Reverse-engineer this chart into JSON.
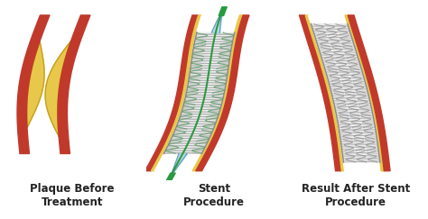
{
  "bg_color": "#ffffff",
  "panel_labels": [
    "Plaque Before\nTreatment",
    "Stent\nProcedure",
    "Result After Stent\nProcedure"
  ],
  "artery_color": "#c0392b",
  "artery_wall_color": "#c0392b",
  "artery_inner_color": "#f5deb3",
  "plaque_fill": "#e8c84a",
  "plaque_border": "#c8a020",
  "stent_color": "#888888",
  "stent_bg": "#e8e8e8",
  "yellow_layer": "#e8c84a",
  "catheter_green": "#2a9a40",
  "catheter_tip": "#1a7a30",
  "balloon_color": "#90c8e0",
  "balloon_border": "#6099b0",
  "label_color": "#222222",
  "label_fontsize": 8.5,
  "label_fontweight": "bold"
}
